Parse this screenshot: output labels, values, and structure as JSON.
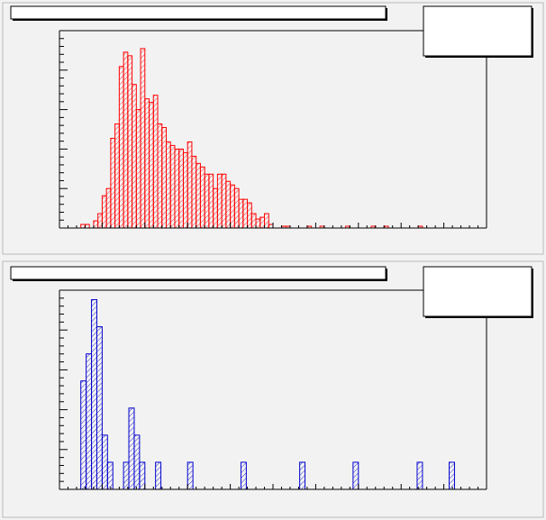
{
  "chart_data": [
    {
      "type": "histogram",
      "color": "#ff0000",
      "ylim": [
        0,
        110
      ],
      "xlim": [
        0,
        100
      ],
      "bins": [
        0,
        1,
        2,
        3,
        4,
        5,
        6,
        7,
        8,
        9,
        10,
        11,
        12,
        13,
        14,
        15,
        16,
        17,
        18,
        19,
        20,
        21,
        22,
        23,
        24,
        25,
        26,
        27,
        28,
        29,
        30,
        31,
        32,
        33,
        34,
        35,
        36,
        37,
        38,
        39,
        40,
        41,
        42,
        43,
        44,
        45,
        46,
        47,
        48,
        49,
        50,
        51,
        52,
        53,
        54,
        55,
        56,
        57,
        58,
        59,
        60,
        61,
        62,
        63,
        64,
        65,
        66,
        67,
        68,
        69,
        70,
        71,
        72,
        73,
        74,
        75,
        76,
        77,
        78,
        79,
        80,
        81,
        82,
        83,
        84,
        85,
        86,
        87,
        88,
        89,
        90,
        91,
        92,
        93,
        94,
        95,
        96,
        97,
        98,
        99,
        100
      ],
      "values": [
        0,
        0,
        0,
        0,
        0,
        2,
        2,
        0,
        4,
        8,
        18,
        22,
        50,
        58,
        90,
        98,
        96,
        80,
        66,
        100,
        72,
        70,
        74,
        58,
        56,
        48,
        46,
        44,
        44,
        42,
        48,
        40,
        36,
        34,
        30,
        30,
        22,
        30,
        30,
        26,
        24,
        22,
        16,
        16,
        14,
        8,
        5,
        6,
        8,
        2,
        0,
        0,
        1,
        1,
        0,
        0,
        0,
        0,
        1,
        0,
        0,
        1,
        0,
        0,
        0,
        0,
        0,
        1,
        0,
        0,
        0,
        0,
        0,
        1,
        0,
        0,
        1,
        0,
        0,
        0,
        0,
        0,
        0,
        0,
        1,
        0,
        0,
        0,
        0,
        0,
        0,
        0,
        0,
        0,
        0,
        0,
        0,
        0,
        0,
        0
      ]
    },
    {
      "type": "histogram",
      "color": "#0000cc",
      "ylim": [
        0,
        7.35
      ],
      "xlim": [
        0,
        80
      ],
      "bins": [
        0,
        1,
        2,
        3,
        4,
        5,
        6,
        7,
        8,
        9,
        10,
        11,
        12,
        13,
        14,
        15,
        16,
        17,
        18,
        19,
        20,
        21,
        22,
        23,
        24,
        25,
        26,
        27,
        28,
        29,
        30,
        31,
        32,
        33,
        34,
        35,
        36,
        37,
        38,
        39,
        40,
        41,
        42,
        43,
        44,
        45,
        46,
        47,
        48,
        49,
        50,
        51,
        52,
        53,
        54,
        55,
        56,
        57,
        58,
        59,
        60,
        61,
        62,
        63,
        64,
        65,
        66,
        67,
        68,
        69,
        70,
        71,
        72,
        73,
        74,
        75,
        76,
        77,
        78,
        79,
        80
      ],
      "values": [
        0,
        0,
        0,
        0,
        4,
        5,
        7,
        6,
        2,
        1,
        0,
        0,
        1,
        3,
        2,
        1,
        0,
        0,
        1,
        0,
        0,
        0,
        0,
        0,
        1,
        0,
        0,
        0,
        0,
        0,
        0,
        0,
        0,
        0,
        1,
        0,
        0,
        0,
        0,
        0,
        0,
        0,
        0,
        0,
        0,
        1,
        0,
        0,
        0,
        0,
        0,
        0,
        0,
        0,
        0,
        1,
        0,
        0,
        0,
        0,
        0,
        0,
        0,
        0,
        0,
        0,
        0,
        1,
        0,
        0,
        0,
        0,
        0,
        1,
        0,
        0,
        0,
        0,
        0,
        0
      ]
    }
  ]
}
